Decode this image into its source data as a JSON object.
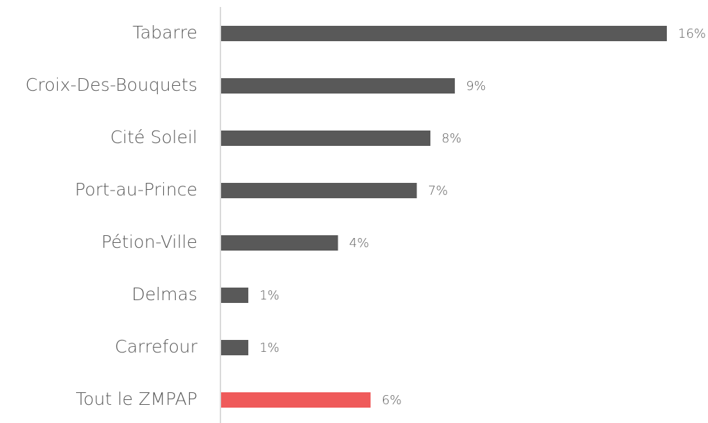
{
  "chart_data": {
    "type": "hbar",
    "categories": [
      "Tabarre",
      "Croix-Des-Bouquets",
      "Cité Soleil",
      "Port-au-Prince",
      "Pétion-Ville",
      "Delmas",
      "Carrefour",
      "Tout le ZMPAP"
    ],
    "values": [
      16.4,
      8.6,
      7.7,
      7.2,
      4.3,
      1.0,
      1.0,
      5.5
    ],
    "value_labels": [
      "16%",
      "9%",
      "8%",
      "7%",
      "4%",
      "1%",
      "1%",
      "6%"
    ],
    "colors": [
      "#595959",
      "#595959",
      "#595959",
      "#595959",
      "#595959",
      "#595959",
      "#595959",
      "#ef5a5a"
    ]
  }
}
